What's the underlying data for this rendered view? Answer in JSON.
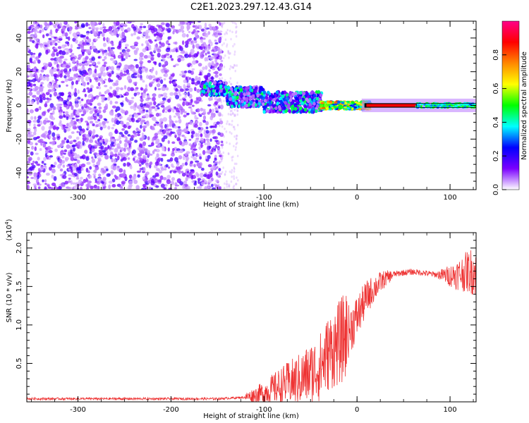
{
  "title": "C2E1.2023.297.12.43.G14",
  "chart_data": [
    {
      "type": "heatmap",
      "xlabel": "Height of straight line (km)",
      "ylabel": "Frequency (Hz)",
      "xlim": [
        -355,
        128
      ],
      "ylim": [
        -50,
        50
      ],
      "x_ticks": [
        -300,
        -200,
        -100,
        0,
        100
      ],
      "y_ticks": [
        -40,
        -20,
        0,
        20,
        40
      ],
      "colorbar": {
        "label": "Normalized spectral amplitude",
        "range": [
          0,
          1
        ],
        "ticks": [
          "0.0",
          "0.2",
          "0.4",
          "0.6",
          "0.8"
        ],
        "colors": [
          "#ffffff",
          "#7b00ff",
          "#0000ff",
          "#00ffff",
          "#00ff00",
          "#ffff00",
          "#ff8800",
          "#ff0000",
          "#ff0088"
        ]
      },
      "regions": [
        {
          "x_range": [
            -355,
            -148
          ],
          "freq_range": [
            -50,
            50
          ],
          "amplitude": "noise 0.0-0.15"
        },
        {
          "x_range": [
            -165,
            -40
          ],
          "freq_center": [
            10,
            0
          ],
          "width_hz": [
            8,
            14
          ],
          "amplitude": "0.1-0.45"
        },
        {
          "x_range": [
            -40,
            10
          ],
          "freq_center": 0,
          "width_hz": 5,
          "amplitude": "0.3-0.8"
        },
        {
          "x_range": [
            10,
            65
          ],
          "freq_center": 0,
          "width_hz": 2,
          "amplitude": "0.85-0.9"
        },
        {
          "x_range": [
            65,
            128
          ],
          "freq_center": 0,
          "width_hz": 4,
          "amplitude": "0.3-0.5"
        }
      ]
    },
    {
      "type": "line",
      "xlabel": "Height of straight line (km)",
      "ylabel": "SNR (10 * v/v)",
      "yscale_label": "(x10",
      "yscale_exp": "4",
      "xlim": [
        -355,
        128
      ],
      "ylim": [
        0,
        2.2
      ],
      "x_ticks": [
        -300,
        -200,
        -100,
        0,
        100
      ],
      "y_ticks": [
        0.5,
        1.0,
        1.5,
        2.0
      ],
      "color": "#ee3333",
      "series": [
        {
          "x": [
            -355,
            -300,
            -250,
            -200,
            -150,
            -120,
            -100,
            -80,
            -60,
            -40,
            -30,
            -20,
            -10,
            0,
            10,
            20,
            30,
            40,
            50,
            60,
            70,
            80,
            90,
            100,
            110,
            120,
            128
          ],
          "y": [
            0.04,
            0.04,
            0.04,
            0.04,
            0.04,
            0.06,
            0.12,
            0.22,
            0.3,
            0.45,
            0.65,
            0.75,
            0.9,
            1.1,
            1.35,
            1.5,
            1.6,
            1.66,
            1.68,
            1.69,
            1.68,
            1.66,
            1.65,
            1.64,
            1.66,
            1.7,
            1.7
          ]
        }
      ]
    }
  ]
}
